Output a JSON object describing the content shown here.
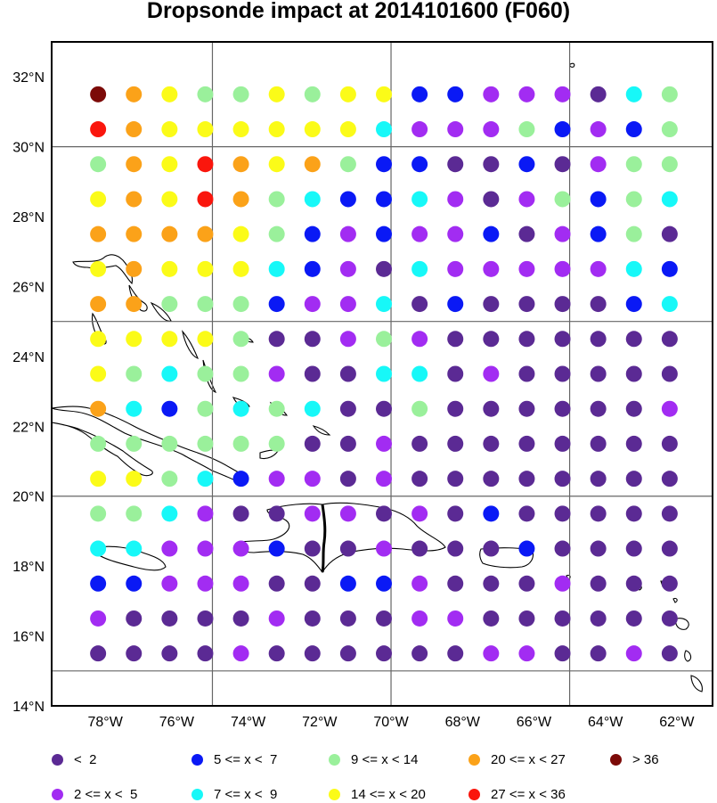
{
  "title": "Dropsonde impact at 2014101600 (F060)",
  "map": {
    "lat_labels": [
      "32°N",
      "30°N",
      "28°N",
      "26°N",
      "24°N",
      "22°N",
      "20°N",
      "18°N",
      "16°N",
      "14°N"
    ],
    "lon_labels": [
      "78°W",
      "76°W",
      "74°W",
      "72°W",
      "70°W",
      "68°W",
      "66°W",
      "64°W",
      "62°W"
    ]
  },
  "chart_data": {
    "type": "scatter",
    "title": "Dropsonde impact at 2014101600 (F060)",
    "lon_range_deg_west": [
      79.5,
      61.0
    ],
    "lat_range": [
      14,
      33
    ],
    "grid_lines": {
      "lon_deg_west": [
        75,
        70,
        65
      ],
      "lat": [
        30,
        25,
        20,
        15
      ]
    },
    "lons_deg_west": [
      78.2,
      77.2,
      76.2,
      75.2,
      74.2,
      73.2,
      72.2,
      71.2,
      70.2,
      69.2,
      68.2,
      67.2,
      66.2,
      65.2,
      64.2,
      63.2,
      62.2
    ],
    "lats": [
      31.5,
      30.5,
      29.5,
      28.5,
      27.5,
      26.5,
      25.5,
      24.5,
      23.5,
      22.5,
      21.5,
      20.5,
      19.5,
      18.5,
      17.5,
      16.5,
      15.5
    ],
    "grid_values_class": [
      [
        9,
        8,
        7,
        6,
        6,
        7,
        6,
        7,
        7,
        4,
        4,
        2,
        2,
        2,
        1,
        5,
        6
      ],
      [
        10,
        8,
        7,
        7,
        7,
        7,
        7,
        7,
        5,
        2,
        2,
        2,
        6,
        4,
        2,
        4,
        6
      ],
      [
        6,
        8,
        7,
        10,
        8,
        7,
        8,
        6,
        4,
        4,
        1,
        1,
        4,
        1,
        2,
        6,
        6
      ],
      [
        7,
        8,
        7,
        10,
        8,
        6,
        5,
        4,
        4,
        5,
        2,
        1,
        2,
        6,
        4,
        6,
        5
      ],
      [
        8,
        8,
        8,
        8,
        7,
        6,
        4,
        2,
        4,
        2,
        2,
        4,
        1,
        2,
        4,
        6,
        1
      ],
      [
        7,
        8,
        7,
        7,
        7,
        5,
        4,
        2,
        1,
        5,
        2,
        2,
        2,
        2,
        2,
        5,
        4
      ],
      [
        8,
        8,
        6,
        6,
        6,
        4,
        2,
        2,
        5,
        1,
        4,
        1,
        1,
        1,
        1,
        4,
        5
      ],
      [
        7,
        7,
        7,
        7,
        6,
        1,
        1,
        2,
        6,
        2,
        1,
        1,
        1,
        1,
        1,
        1,
        1
      ],
      [
        7,
        6,
        5,
        6,
        6,
        2,
        1,
        1,
        5,
        5,
        1,
        2,
        1,
        1,
        1,
        1,
        1
      ],
      [
        8,
        5,
        4,
        6,
        5,
        6,
        5,
        1,
        1,
        6,
        1,
        1,
        1,
        1,
        1,
        1,
        2
      ],
      [
        6,
        6,
        6,
        6,
        6,
        6,
        1,
        1,
        2,
        1,
        1,
        1,
        1,
        1,
        1,
        1,
        1
      ],
      [
        7,
        7,
        6,
        5,
        4,
        2,
        2,
        1,
        2,
        1,
        1,
        1,
        1,
        1,
        1,
        1,
        1
      ],
      [
        6,
        6,
        5,
        2,
        1,
        1,
        2,
        2,
        1,
        2,
        1,
        4,
        1,
        1,
        1,
        1,
        1
      ],
      [
        5,
        5,
        2,
        2,
        2,
        4,
        1,
        1,
        2,
        1,
        1,
        1,
        4,
        1,
        1,
        1,
        1
      ],
      [
        4,
        4,
        2,
        2,
        2,
        1,
        1,
        4,
        4,
        2,
        1,
        1,
        1,
        2,
        1,
        1,
        1
      ],
      [
        2,
        1,
        1,
        1,
        1,
        2,
        1,
        1,
        1,
        2,
        2,
        1,
        1,
        1,
        1,
        1,
        1
      ],
      [
        1,
        1,
        1,
        1,
        2,
        1,
        1,
        1,
        1,
        1,
        1,
        2,
        2,
        1,
        1,
        2,
        1
      ]
    ],
    "classes": [
      {
        "id": 1,
        "label": "<  2",
        "color": "#5b2a94"
      },
      {
        "id": 2,
        "label": "2 <= x <  5",
        "color": "#a22cf2"
      },
      {
        "id": 4,
        "label": "5 <= x <  7",
        "color": "#0a19f5"
      },
      {
        "id": 5,
        "label": "7 <= x <  9",
        "color": "#17f8f8"
      },
      {
        "id": 6,
        "label": "9 <= x < 14",
        "color": "#9af09b"
      },
      {
        "id": 7,
        "label": "14 <= x < 20",
        "color": "#fbfb18"
      },
      {
        "id": 8,
        "label": "20 <= x < 27",
        "color": "#fba219"
      },
      {
        "id": 10,
        "label": "27 <= x < 36",
        "color": "#fa160d"
      },
      {
        "id": 9,
        "label": "> 36",
        "color": "#7c0a08"
      }
    ]
  },
  "legend": [
    {
      "label": "<  2",
      "color": "#5b2a94"
    },
    {
      "label": "5 <= x <  7",
      "color": "#0a19f5"
    },
    {
      "label": "9 <= x < 14",
      "color": "#9af09b"
    },
    {
      "label": "20 <= x < 27",
      "color": "#fba219"
    },
    {
      "label": "> 36",
      "color": "#7c0a08"
    },
    {
      "label": "2 <= x <  5",
      "color": "#a22cf2"
    },
    {
      "label": "7 <= x <  9",
      "color": "#17f8f8"
    },
    {
      "label": "14 <= x < 20",
      "color": "#fbfb18"
    },
    {
      "label": "27 <= x < 36",
      "color": "#fa160d"
    }
  ]
}
